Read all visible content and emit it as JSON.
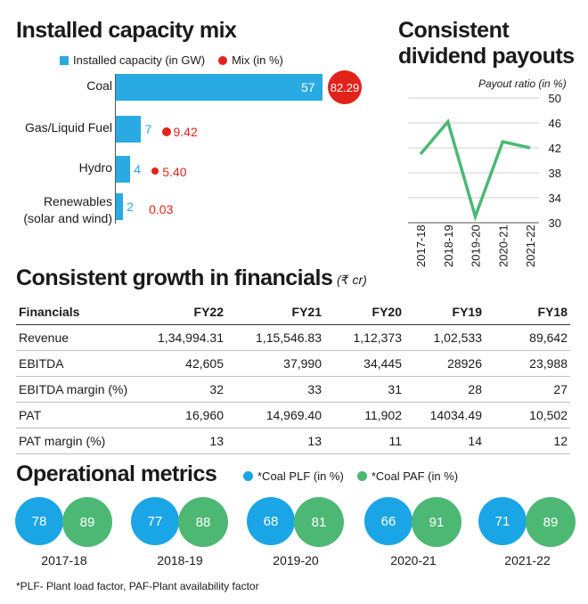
{
  "capacity": {
    "title": "Installed capacity mix",
    "legend_capacity": "Installed capacity (in GW)",
    "legend_mix": "Mix (in %)",
    "colors": {
      "bar": "#2aaae2",
      "mix": "#e2231a"
    },
    "categories": [
      "Coal",
      "Gas/Liquid Fuel",
      "Hydro",
      "Renewables\n(solar and wind)"
    ],
    "capacity_labels": [
      "57",
      "7",
      "4",
      "2"
    ],
    "mix_labels": [
      "82.29",
      "9.42",
      "5.40",
      "0.03"
    ]
  },
  "dividend": {
    "title": "Consistent dividend payouts",
    "title_line1": "Consistent",
    "title_line2": "dividend payouts",
    "axis_label": "Payout ratio (in %)",
    "y_ticks": [
      "50",
      "46",
      "42",
      "38",
      "34",
      "30"
    ],
    "x_labels": [
      "2017-18",
      "2018-19",
      "2019-20",
      "2020-21",
      "2021-22"
    ],
    "line_color": "#4cb874"
  },
  "financials": {
    "title": "Consistent growth in financials",
    "unit": "(₹ cr)",
    "headers": [
      "Financials",
      "FY22",
      "FY21",
      "FY20",
      "FY19",
      "FY18"
    ],
    "rows": [
      [
        "Revenue",
        "1,34,994.31",
        "1,15,546.83",
        "1,12,373",
        "1,02,533",
        "89,642"
      ],
      [
        "EBITDA",
        "42,605",
        "37,990",
        "34,445",
        "28926",
        "23,988"
      ],
      [
        "EBITDA margin (%)",
        "32",
        "33",
        "31",
        "28",
        "27"
      ],
      [
        "PAT",
        "16,960",
        "14,969.40",
        "11,902",
        "14034.49",
        "10,502"
      ],
      [
        "PAT margin (%)",
        "13",
        "13",
        "11",
        "14",
        "12"
      ]
    ]
  },
  "operational": {
    "title": "Operational metrics",
    "legend_plf": "*Coal PLF (in %)",
    "legend_paf": "*Coal PAF (in %)",
    "colors": {
      "plf": "#1aa5e6",
      "paf": "#4cb874"
    },
    "years": [
      {
        "label": "2017-18",
        "plf": "78",
        "paf": "89"
      },
      {
        "label": "2018-19",
        "plf": "77",
        "paf": "88"
      },
      {
        "label": "2019-20",
        "plf": "68",
        "paf": "81"
      },
      {
        "label": "2020-21",
        "plf": "66",
        "paf": "91"
      },
      {
        "label": "2021-22",
        "plf": "71",
        "paf": "89"
      }
    ]
  },
  "footnote": "*PLF- Plant load factor, PAF-Plant availability factor",
  "chart_data": [
    {
      "type": "bar",
      "title": "Installed capacity mix",
      "categories": [
        "Coal",
        "Gas/Liquid Fuel",
        "Hydro",
        "Renewables (solar and wind)"
      ],
      "series": [
        {
          "name": "Installed capacity (in GW)",
          "values": [
            57,
            7,
            4,
            2
          ]
        },
        {
          "name": "Mix (in %)",
          "values": [
            82.29,
            9.42,
            5.4,
            0.03
          ]
        }
      ],
      "orientation": "horizontal"
    },
    {
      "type": "line",
      "title": "Consistent dividend payouts",
      "ylabel": "Payout ratio (in %)",
      "x": [
        "2017-18",
        "2018-19",
        "2019-20",
        "2020-21",
        "2021-22"
      ],
      "values": [
        41,
        46.2,
        31,
        43,
        42
      ],
      "ylim": [
        30,
        50
      ],
      "grid": true
    },
    {
      "type": "table",
      "title": "Consistent growth in financials",
      "unit": "(₹ cr)",
      "columns": [
        "Financials",
        "FY22",
        "FY21",
        "FY20",
        "FY19",
        "FY18"
      ],
      "rows": [
        [
          "Revenue",
          "1,34,994.31",
          "1,15,546.83",
          "1,12,373",
          "1,02,533",
          "89,642"
        ],
        [
          "EBITDA",
          "42,605",
          "37,990",
          "34,445",
          "28926",
          "23,988"
        ],
        [
          "EBITDA margin (%)",
          "32",
          "33",
          "31",
          "28",
          "27"
        ],
        [
          "PAT",
          "16,960",
          "14,969.40",
          "11,902",
          "14034.49",
          "10,502"
        ],
        [
          "PAT margin (%)",
          "13",
          "13",
          "11",
          "14",
          "12"
        ]
      ]
    },
    {
      "type": "scatter",
      "title": "Operational metrics",
      "categories": [
        "2017-18",
        "2018-19",
        "2019-20",
        "2020-21",
        "2021-22"
      ],
      "series": [
        {
          "name": "*Coal PLF (in %)",
          "values": [
            78,
            77,
            68,
            66,
            71
          ]
        },
        {
          "name": "*Coal PAF (in %)",
          "values": [
            89,
            88,
            81,
            91,
            89
          ]
        }
      ]
    }
  ]
}
